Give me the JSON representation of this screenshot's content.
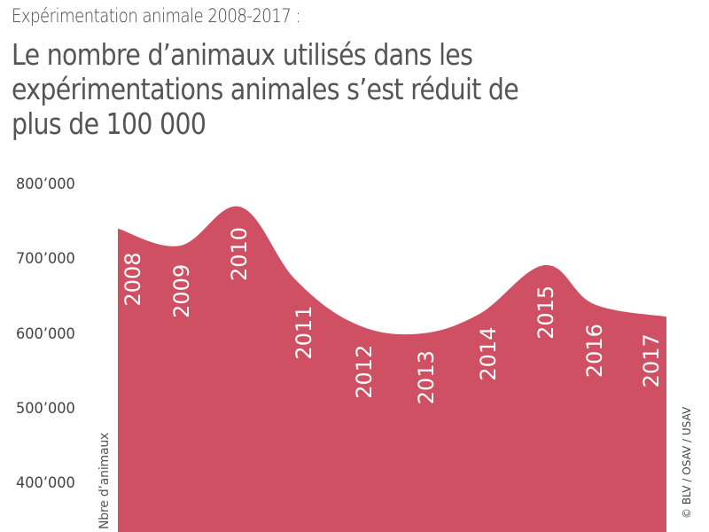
{
  "header": {
    "kicker": "Expérimentation animale 2008-2017 :",
    "title_lines": [
      "Le nombre d’animaux utilisés dans les",
      "expérimentations animales s’est réduit de",
      "plus de 100 000"
    ]
  },
  "credit": "© BLV / OSAV / USAV",
  "colors": {
    "area": "#cf5063",
    "text": "#444444",
    "label": "#ffffff"
  },
  "chart_data": {
    "type": "area",
    "title": "Le nombre d’animaux utilisés dans les expérimentations animales s’est réduit de plus de 100 000",
    "subtitle": "Expérimentation animale 2008-2017 :",
    "xlabel": "",
    "ylabel": "Nbre d’animaux",
    "categories": [
      "2008",
      "2009",
      "2010",
      "2011",
      "2012",
      "2013",
      "2014",
      "2015",
      "2016",
      "2017"
    ],
    "series": [
      {
        "name": "Nbre d’animaux",
        "values": [
          741000,
          718000,
          770000,
          673000,
          614000,
          600000,
          626000,
          692000,
          640000,
          623000
        ]
      }
    ],
    "yticks": [
      {
        "value": 800000,
        "label": "800’000"
      },
      {
        "value": 700000,
        "label": "700’000"
      },
      {
        "value": 600000,
        "label": "600’000"
      },
      {
        "value": 500000,
        "label": "500’000"
      },
      {
        "value": 400000,
        "label": "400’000"
      }
    ],
    "ylim": [
      345000,
      800000
    ],
    "grid": false,
    "legend": "none",
    "year_labels_inside_area": true
  }
}
